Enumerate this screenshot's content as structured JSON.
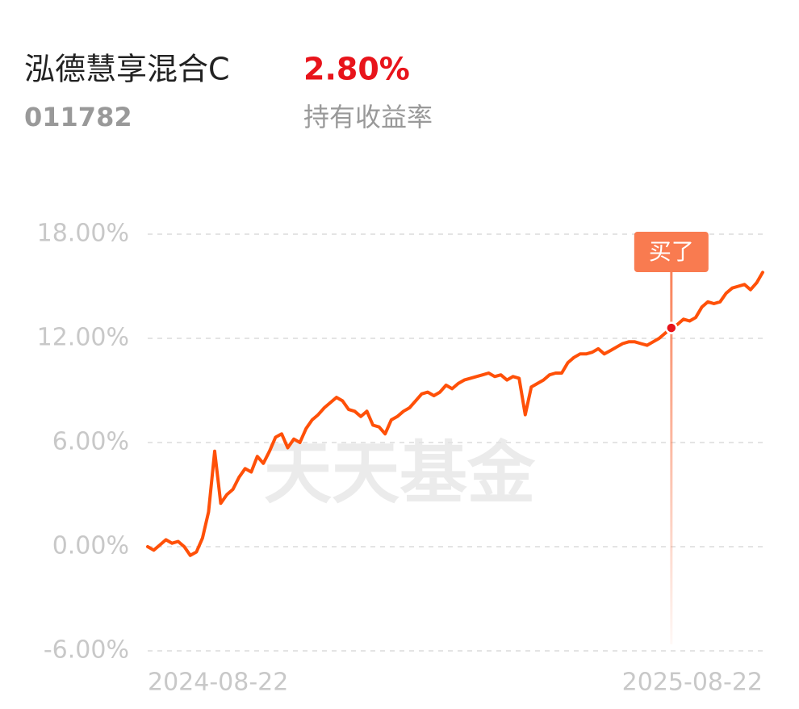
{
  "header": {
    "fund_name": "泓德慧享混合C",
    "return_value": "2.80%",
    "fund_code": "011782",
    "return_label": "持有收益率"
  },
  "chart_data": {
    "type": "line",
    "watermark": "天天基金",
    "categories": [
      "2024-08-22",
      null,
      null,
      null,
      null,
      null,
      null,
      null,
      null,
      null,
      null,
      null,
      null,
      null,
      null,
      null,
      null,
      null,
      null,
      null,
      null,
      null,
      null,
      null,
      null,
      null,
      null,
      null,
      null,
      null,
      null,
      null,
      null,
      null,
      null,
      null,
      null,
      null,
      null,
      null,
      null,
      null,
      null,
      null,
      null,
      null,
      null,
      null,
      null,
      null,
      null,
      null,
      null,
      null,
      null,
      null,
      null,
      null,
      null,
      null,
      null,
      null,
      null,
      null,
      null,
      null,
      null,
      null,
      null,
      null,
      null,
      null,
      null,
      null,
      null,
      null,
      null,
      null,
      null,
      null,
      null,
      null,
      null,
      null,
      null,
      null,
      null,
      null,
      null,
      null,
      null,
      null,
      null,
      null,
      null,
      null,
      null,
      null,
      null,
      null,
      null,
      "2025-08-22"
    ],
    "series": [
      {
        "color": "#ff5008",
        "values": [
          0.0,
          -0.2,
          0.1,
          0.4,
          0.2,
          0.3,
          0,
          -0.5,
          -0.3,
          0.5,
          2,
          5.5,
          2.5,
          3,
          3.3,
          4,
          4.5,
          4.3,
          5.2,
          4.8,
          5.5,
          6.3,
          6.5,
          5.7,
          6.2,
          6.0,
          6.8,
          7.3,
          7.6,
          8.0,
          8.3,
          8.6,
          8.4,
          7.9,
          7.8,
          7.5,
          7.8,
          7.0,
          6.9,
          6.5,
          7.3,
          7.5,
          7.8,
          8.0,
          8.4,
          8.8,
          8.9,
          8.7,
          8.9,
          9.3,
          9.1,
          9.4,
          9.6,
          9.7,
          9.8,
          9.9,
          10.0,
          9.8,
          9.9,
          9.6,
          9.8,
          9.7,
          7.6,
          9.2,
          9.4,
          9.6,
          9.9,
          10.0,
          10.0,
          10.6,
          10.9,
          11.1,
          11.1,
          11.2,
          11.4,
          11.1,
          11.3,
          11.5,
          11.7,
          11.8,
          11.8,
          11.7,
          11.6,
          11.8,
          12.0,
          12.3,
          12.6,
          12.8,
          13.1,
          13.0,
          13.2,
          13.8,
          14.1,
          14.0,
          14.1,
          14.6,
          14.9,
          15.0,
          15.1,
          14.8,
          15.2,
          15.8
        ]
      }
    ],
    "annotation": {
      "label": "买了",
      "index": 86,
      "color": "#f97b50"
    },
    "ylim": [
      -6,
      18
    ],
    "yticks": [
      {
        "value": -6,
        "label": "-6.00%"
      },
      {
        "value": 0,
        "label": "0.00%"
      },
      {
        "value": 6,
        "label": "6.00%"
      },
      {
        "value": 12,
        "label": "12.00%"
      },
      {
        "value": 18,
        "label": "18.00%"
      }
    ],
    "grid": true
  }
}
